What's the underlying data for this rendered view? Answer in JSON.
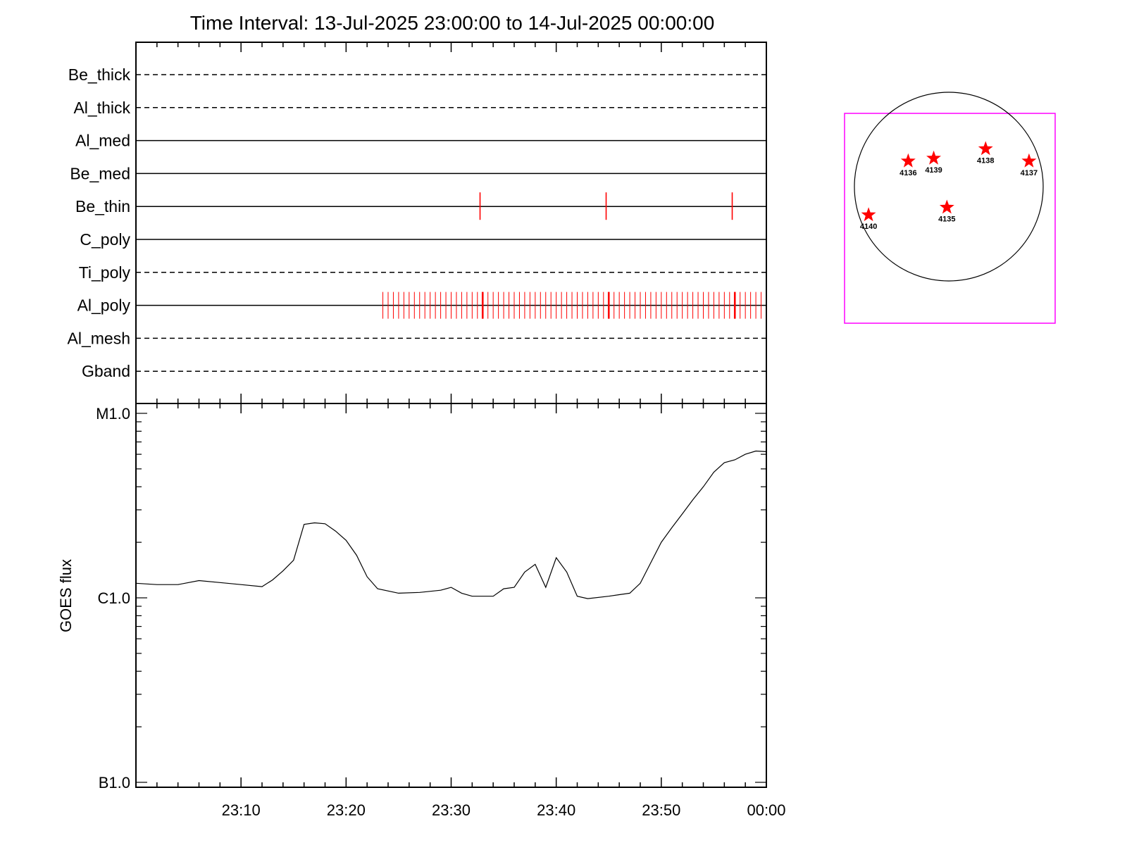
{
  "chart_data": [
    {
      "type": "timeline",
      "title": "Time Interval: 13-Jul-2025 23:00:00 to 14-Jul-2025 00:00:00",
      "channels": [
        {
          "name": "Be_thick",
          "style": "dashed",
          "events": []
        },
        {
          "name": "Al_thick",
          "style": "dashed",
          "events": []
        },
        {
          "name": "Al_med",
          "style": "solid",
          "events": []
        },
        {
          "name": "Be_med",
          "style": "solid",
          "events": []
        },
        {
          "name": "Be_thin",
          "style": "solid",
          "events": [
            "23:32:45",
            "23:44:45",
            "23:56:45"
          ]
        },
        {
          "name": "C_poly",
          "style": "solid",
          "events": []
        },
        {
          "name": "Ti_poly",
          "style": "dashed",
          "events": []
        },
        {
          "name": "Al_poly",
          "style": "solid",
          "events_start": "23:23:30",
          "events_end": "23:59:45",
          "events_cadence_s": 30,
          "emphasized_events": [
            "23:33:00",
            "23:45:00",
            "23:57:00"
          ]
        },
        {
          "name": "Al_mesh",
          "style": "dashed",
          "events": []
        },
        {
          "name": "Gband",
          "style": "dashed",
          "events": []
        }
      ],
      "event_color": "#ff0000"
    },
    {
      "type": "line",
      "ylabel": "GOES flux",
      "y_scale": "log",
      "y_ticks": [
        "M1.0",
        "C1.0",
        "B1.0"
      ],
      "ylim": [
        "B1.0",
        "M1.0"
      ],
      "x_ticks": [
        "23:10",
        "23:20",
        "23:30",
        "23:40",
        "23:50",
        "00:00"
      ],
      "xlim": [
        "23:00",
        "00:00"
      ],
      "series": [
        {
          "values": [
            [
              "23:00",
              "C1.20"
            ],
            [
              "23:02",
              "C1.18"
            ],
            [
              "23:04",
              "C1.18"
            ],
            [
              "23:06",
              "C1.24"
            ],
            [
              "23:08",
              "C1.21"
            ],
            [
              "23:10",
              "C1.18"
            ],
            [
              "23:12",
              "C1.15"
            ],
            [
              "23:13",
              "C1.25"
            ],
            [
              "23:14",
              "C1.40"
            ],
            [
              "23:15",
              "C1.60"
            ],
            [
              "23:16",
              "C2.50"
            ],
            [
              "23:17",
              "C2.55"
            ],
            [
              "23:18",
              "C2.52"
            ],
            [
              "23:19",
              "C2.30"
            ],
            [
              "23:20",
              "C2.05"
            ],
            [
              "23:21",
              "C1.70"
            ],
            [
              "23:22",
              "C1.30"
            ],
            [
              "23:23",
              "C1.12"
            ],
            [
              "23:25",
              "C1.06"
            ],
            [
              "23:27",
              "C1.07"
            ],
            [
              "23:29",
              "C1.10"
            ],
            [
              "23:30",
              "C1.14"
            ],
            [
              "23:31",
              "C1.06"
            ],
            [
              "23:32",
              "C1.02"
            ],
            [
              "23:34",
              "C1.02"
            ],
            [
              "23:35",
              "C1.12"
            ],
            [
              "23:36",
              "C1.14"
            ],
            [
              "23:37",
              "C1.38"
            ],
            [
              "23:38",
              "C1.52"
            ],
            [
              "23:39",
              "C1.14"
            ],
            [
              "23:40",
              "C1.65"
            ],
            [
              "23:41",
              "C1.38"
            ],
            [
              "23:42",
              "C1.02"
            ],
            [
              "23:43",
              "C0.99"
            ],
            [
              "23:45",
              "C1.02"
            ],
            [
              "23:46",
              "C1.04"
            ],
            [
              "23:47",
              "C1.06"
            ],
            [
              "23:48",
              "C1.20"
            ],
            [
              "23:49",
              "C1.55"
            ],
            [
              "23:50",
              "C2.00"
            ],
            [
              "23:51",
              "C2.40"
            ],
            [
              "23:52",
              "C2.85"
            ],
            [
              "23:53",
              "C3.40"
            ],
            [
              "23:54",
              "C4.00"
            ],
            [
              "23:55",
              "C4.80"
            ],
            [
              "23:56",
              "C5.40"
            ],
            [
              "23:57",
              "C5.60"
            ],
            [
              "23:58",
              "C6.00"
            ],
            [
              "23:59",
              "C6.25"
            ],
            [
              "00:00",
              "C6.20"
            ]
          ]
        }
      ]
    },
    {
      "type": "scatter",
      "points": [
        {
          "label": "4136",
          "x": -0.43,
          "y": 0.27
        },
        {
          "label": "4139",
          "x": -0.16,
          "y": 0.3
        },
        {
          "label": "4138",
          "x": 0.39,
          "y": 0.4
        },
        {
          "label": "4137",
          "x": 0.85,
          "y": 0.27
        },
        {
          "label": "4140",
          "x": -0.85,
          "y": -0.3
        },
        {
          "label": "4135",
          "x": -0.02,
          "y": -0.22
        }
      ],
      "limb_color": "#000000",
      "frame_color": "#ff00ff",
      "marker_color": "#ff0000"
    }
  ]
}
